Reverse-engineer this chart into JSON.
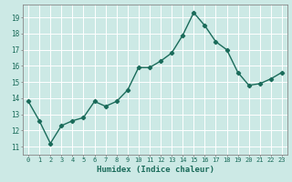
{
  "x": [
    0,
    1,
    2,
    3,
    4,
    5,
    6,
    7,
    8,
    9,
    10,
    11,
    12,
    13,
    14,
    15,
    16,
    17,
    18,
    19,
    20,
    21,
    22,
    23
  ],
  "y": [
    13.8,
    12.6,
    11.2,
    12.3,
    12.6,
    12.8,
    13.8,
    13.5,
    13.8,
    14.5,
    15.9,
    15.9,
    16.3,
    16.8,
    17.9,
    19.3,
    18.5,
    17.5,
    17.0,
    15.6,
    14.8,
    14.9,
    15.2,
    15.6
  ],
  "xlabel": "Humidex (Indice chaleur)",
  "xlim": [
    -0.5,
    23.5
  ],
  "ylim": [
    10.5,
    19.8
  ],
  "yticks": [
    11,
    12,
    13,
    14,
    15,
    16,
    17,
    18,
    19
  ],
  "xticks": [
    0,
    1,
    2,
    3,
    4,
    5,
    6,
    7,
    8,
    9,
    10,
    11,
    12,
    13,
    14,
    15,
    16,
    17,
    18,
    19,
    20,
    21,
    22,
    23
  ],
  "line_color": "#1a6b5a",
  "marker": "D",
  "marker_size": 2.2,
  "bg_color": "#cce9e5",
  "grid_color": "#ffffff",
  "axes_color": "#888888",
  "tick_label_color": "#1a6b5a",
  "xlabel_color": "#1a6b5a",
  "line_width": 1.0
}
